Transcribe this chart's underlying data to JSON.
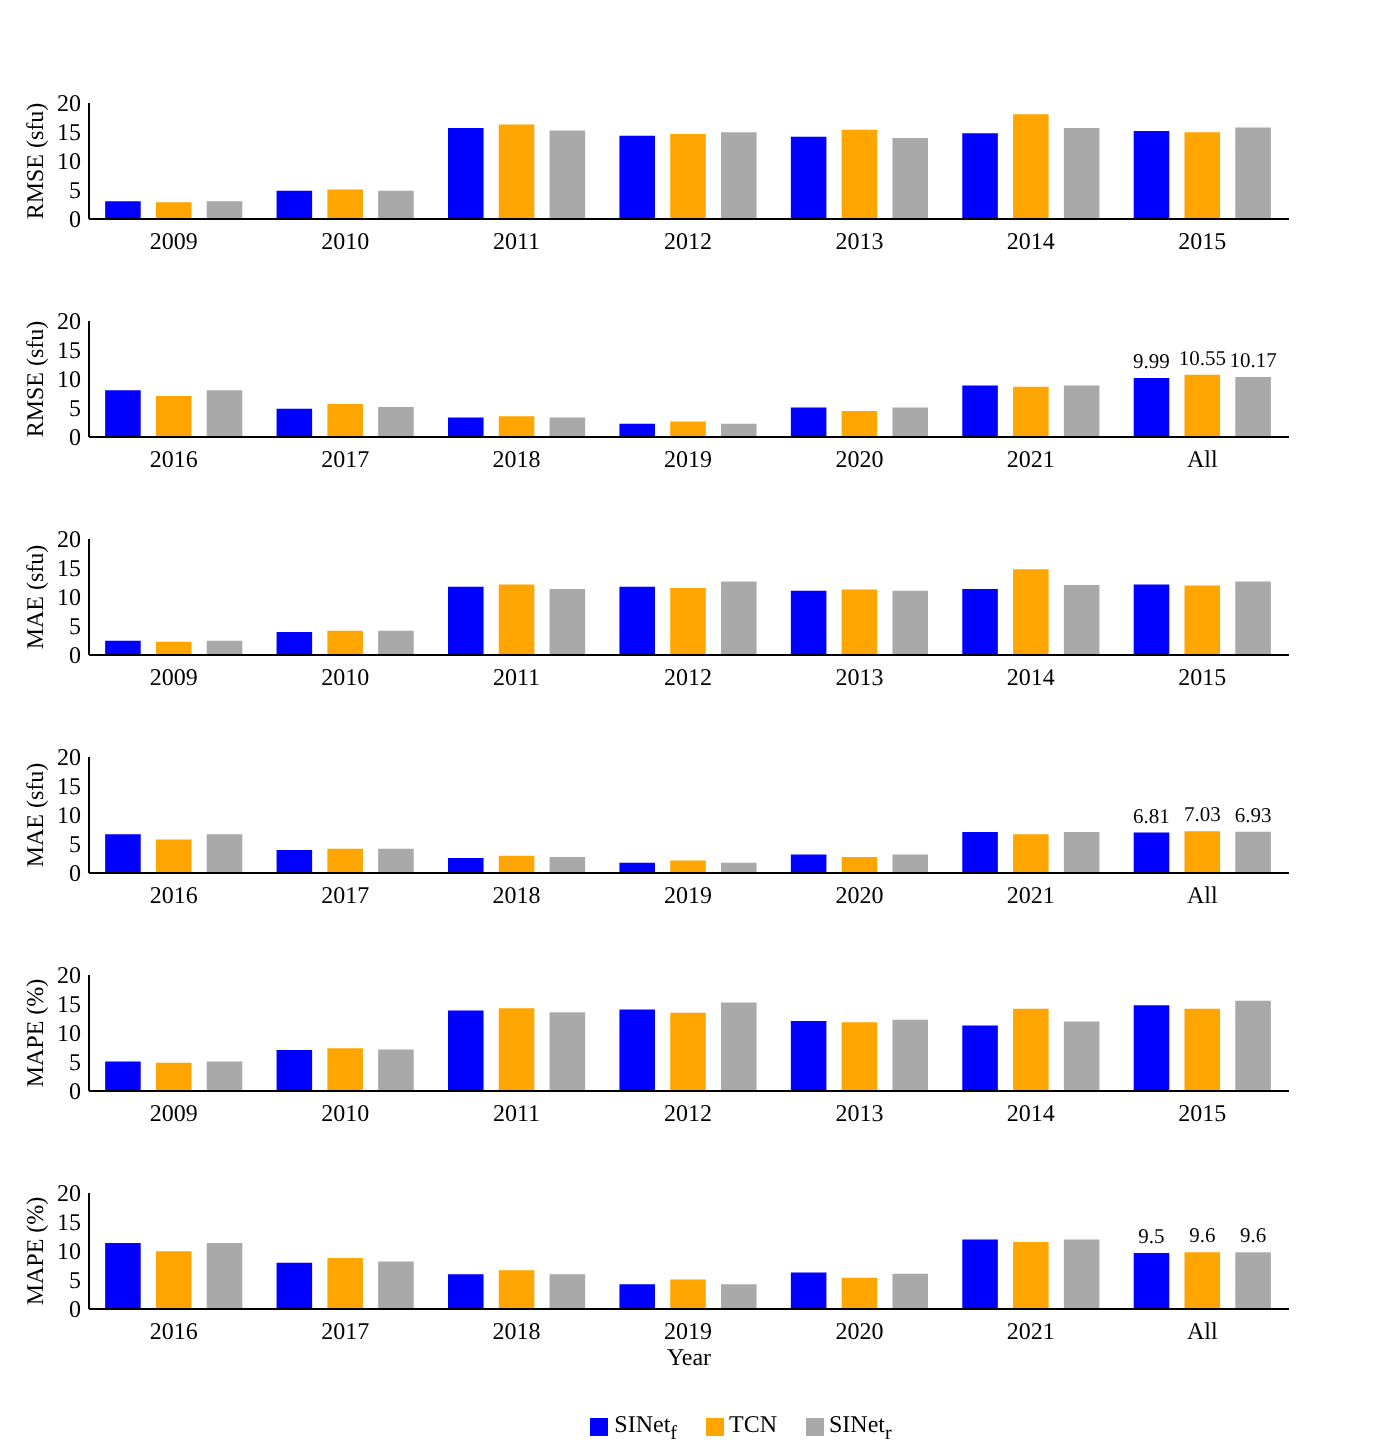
{
  "chart_data": [
    {
      "type": "bar",
      "ylabel": "RMSE (sfu)",
      "categories": [
        "2009",
        "2010",
        "2011",
        "2012",
        "2013",
        "2014",
        "2015"
      ],
      "ylim": [
        0,
        20
      ],
      "yticks": [
        0,
        5,
        10,
        15,
        20
      ],
      "series": [
        {
          "color": "#0000ff",
          "values": [
            2.9,
            4.7,
            15.5,
            14.2,
            14.0,
            14.6,
            15.0
          ]
        },
        {
          "color": "#ffa500",
          "values": [
            2.7,
            4.9,
            16.1,
            14.5,
            15.2,
            17.9,
            14.8
          ]
        },
        {
          "color": "#a9a9a9",
          "values": [
            2.9,
            4.7,
            15.1,
            14.8,
            13.8,
            15.5,
            15.6
          ]
        }
      ]
    },
    {
      "type": "bar",
      "ylabel": "RMSE (sfu)",
      "categories": [
        "2016",
        "2017",
        "2018",
        "2019",
        "2020",
        "2021",
        "All"
      ],
      "ylim": [
        0,
        20
      ],
      "yticks": [
        0,
        5,
        10,
        15,
        20
      ],
      "series": [
        {
          "color": "#0000ff",
          "values": [
            7.9,
            4.7,
            3.2,
            2.1,
            4.9,
            8.7,
            9.99
          ],
          "value_labels": [
            null,
            null,
            null,
            null,
            null,
            null,
            "9.99"
          ]
        },
        {
          "color": "#ffa500",
          "values": [
            6.9,
            5.5,
            3.4,
            2.5,
            4.3,
            8.5,
            10.55
          ],
          "value_labels": [
            null,
            null,
            null,
            null,
            null,
            null,
            "10.55"
          ]
        },
        {
          "color": "#a9a9a9",
          "values": [
            7.9,
            5.0,
            3.2,
            2.1,
            4.9,
            8.7,
            10.17
          ],
          "value_labels": [
            null,
            null,
            null,
            null,
            null,
            null,
            "10.17"
          ]
        }
      ]
    },
    {
      "type": "bar",
      "ylabel": "MAE (sfu)",
      "categories": [
        "2009",
        "2010",
        "2011",
        "2012",
        "2013",
        "2014",
        "2015"
      ],
      "ylim": [
        0,
        20
      ],
      "yticks": [
        0,
        5,
        10,
        15,
        20
      ],
      "series": [
        {
          "color": "#0000ff",
          "values": [
            2.3,
            3.8,
            11.6,
            11.6,
            10.9,
            11.2,
            12.0
          ]
        },
        {
          "color": "#ffa500",
          "values": [
            2.1,
            4.0,
            12.0,
            11.4,
            11.1,
            14.6,
            11.8
          ]
        },
        {
          "color": "#a9a9a9",
          "values": [
            2.3,
            4.0,
            11.2,
            12.5,
            10.9,
            11.9,
            12.5
          ]
        }
      ]
    },
    {
      "type": "bar",
      "ylabel": "MAE (sfu)",
      "categories": [
        "2016",
        "2017",
        "2018",
        "2019",
        "2020",
        "2021",
        "All"
      ],
      "ylim": [
        0,
        20
      ],
      "yticks": [
        0,
        5,
        10,
        15,
        20
      ],
      "series": [
        {
          "color": "#0000ff",
          "values": [
            6.5,
            3.8,
            2.4,
            1.6,
            3.0,
            6.9,
            6.81
          ],
          "value_labels": [
            null,
            null,
            null,
            null,
            null,
            null,
            "6.81"
          ]
        },
        {
          "color": "#ffa500",
          "values": [
            5.6,
            4.0,
            2.8,
            2.0,
            2.6,
            6.5,
            7.03
          ],
          "value_labels": [
            null,
            null,
            null,
            null,
            null,
            null,
            "7.03"
          ]
        },
        {
          "color": "#a9a9a9",
          "values": [
            6.5,
            4.0,
            2.6,
            1.6,
            3.0,
            6.9,
            6.93
          ],
          "value_labels": [
            null,
            null,
            null,
            null,
            null,
            null,
            "6.93"
          ]
        }
      ]
    },
    {
      "type": "bar",
      "ylabel": "MAPE (%)",
      "categories": [
        "2009",
        "2010",
        "2011",
        "2012",
        "2013",
        "2014",
        "2015"
      ],
      "ylim": [
        0,
        20
      ],
      "yticks": [
        0,
        5,
        10,
        15,
        20
      ],
      "series": [
        {
          "color": "#0000ff",
          "values": [
            4.9,
            6.9,
            13.7,
            13.9,
            11.9,
            11.1,
            14.6
          ]
        },
        {
          "color": "#ffa500",
          "values": [
            4.7,
            7.2,
            14.1,
            13.3,
            11.7,
            14.0,
            14.0
          ]
        },
        {
          "color": "#a9a9a9",
          "values": [
            4.9,
            7.0,
            13.4,
            15.1,
            12.1,
            11.8,
            15.4
          ]
        }
      ]
    },
    {
      "type": "bar",
      "ylabel": "MAPE (%)",
      "xlabel": "Year",
      "legend": "bottom",
      "categories": [
        "2016",
        "2017",
        "2018",
        "2019",
        "2020",
        "2021",
        "All"
      ],
      "ylim": [
        0,
        20
      ],
      "yticks": [
        0,
        5,
        10,
        15,
        20
      ],
      "series": [
        {
          "name": "SINet$_{f}$",
          "color": "#0000ff",
          "values": [
            11.2,
            7.8,
            5.8,
            4.1,
            6.1,
            11.8,
            9.5
          ],
          "value_labels": [
            null,
            null,
            null,
            null,
            null,
            null,
            "9.5"
          ]
        },
        {
          "name": "TCN",
          "color": "#ffa500",
          "values": [
            9.8,
            8.6,
            6.5,
            4.9,
            5.2,
            11.4,
            9.6
          ],
          "value_labels": [
            null,
            null,
            null,
            null,
            null,
            null,
            "9.6"
          ]
        },
        {
          "name": "SINet$_{r}$",
          "color": "#a9a9a9",
          "values": [
            11.2,
            8.0,
            5.8,
            4.1,
            5.9,
            11.8,
            9.6
          ],
          "value_labels": [
            null,
            null,
            null,
            null,
            null,
            null,
            "9.6"
          ]
        }
      ]
    }
  ]
}
